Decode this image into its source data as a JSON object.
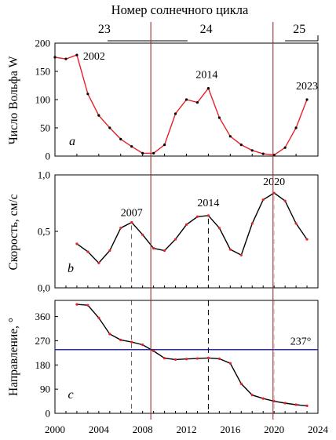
{
  "chart_data": [
    {
      "id": "wolf",
      "type": "line",
      "panel_label": "a",
      "ylabel": "Число Вольфа W",
      "ylim": [
        0,
        200
      ],
      "yticks": [
        "0",
        "50",
        "100",
        "150",
        "200"
      ],
      "color": "#e8202a",
      "x": [
        2000,
        2001,
        2002,
        2003,
        2004,
        2005,
        2006,
        2007,
        2008,
        2009,
        2010,
        2011,
        2012,
        2013,
        2014,
        2015,
        2016,
        2017,
        2018,
        2019,
        2020,
        2021,
        2022,
        2023
      ],
      "values": [
        175,
        172,
        179,
        110,
        72,
        50,
        30,
        17,
        5,
        5,
        20,
        75,
        100,
        95,
        120,
        68,
        35,
        20,
        10,
        4,
        2,
        15,
        50,
        100
      ],
      "annotations": [
        {
          "text": "2002",
          "x": 2002,
          "y": 179
        },
        {
          "text": "2014",
          "x": 2014,
          "y": 120
        },
        {
          "text": "2023",
          "x": 2023,
          "y": 100
        }
      ]
    },
    {
      "id": "speed",
      "type": "line",
      "panel_label": "b",
      "ylabel": "Скорость, см/с",
      "ylim": [
        0,
        1.0
      ],
      "yticks": [
        "0,0",
        "0,5",
        "1,0"
      ],
      "color": "#000000",
      "x": [
        2002,
        2003,
        2004,
        2005,
        2006,
        2007,
        2008,
        2009,
        2010,
        2011,
        2012,
        2013,
        2014,
        2015,
        2016,
        2017,
        2018,
        2019,
        2020,
        2021,
        2022,
        2023
      ],
      "values": [
        0.39,
        0.32,
        0.22,
        0.33,
        0.53,
        0.58,
        0.47,
        0.35,
        0.33,
        0.43,
        0.56,
        0.63,
        0.64,
        0.53,
        0.34,
        0.29,
        0.57,
        0.78,
        0.84,
        0.77,
        0.57,
        0.43
      ],
      "annotations": [
        {
          "text": "2007",
          "x": 2007,
          "y": 0.58
        },
        {
          "text": "2014",
          "x": 2014,
          "y": 0.64
        },
        {
          "text": "2020",
          "x": 2020,
          "y": 0.84
        }
      ]
    },
    {
      "id": "direction",
      "type": "line",
      "panel_label": "c",
      "ylabel": "Направление, °",
      "ylim": [
        0,
        420
      ],
      "yticks": [
        "0",
        "90",
        "180",
        "270",
        "360"
      ],
      "color": "#000000",
      "x": [
        2002,
        2003,
        2004,
        2005,
        2006,
        2007,
        2008,
        2009,
        2010,
        2011,
        2012,
        2013,
        2014,
        2015,
        2016,
        2017,
        2018,
        2019,
        2020,
        2021,
        2022,
        2023
      ],
      "values": [
        405,
        402,
        355,
        295,
        273,
        265,
        255,
        232,
        205,
        200,
        202,
        204,
        206,
        203,
        186,
        110,
        68,
        55,
        45,
        38,
        32,
        28
      ],
      "reference_line": {
        "value": 237,
        "label": "237°",
        "color": "#2a2ac0"
      }
    }
  ],
  "x_axis": {
    "range": [
      2000,
      2024
    ],
    "ticks": [
      "2000",
      "2004",
      "2008",
      "2012",
      "2016",
      "2020",
      "2024"
    ]
  },
  "cycles": {
    "title": "Номер солнечного цикла",
    "labels": [
      "23",
      "24",
      "25"
    ],
    "boundaries": [
      2008.75,
      2019.9
    ],
    "boundary_color": "#a23030"
  },
  "peak_marker_years": [
    2007,
    2014,
    2020
  ]
}
